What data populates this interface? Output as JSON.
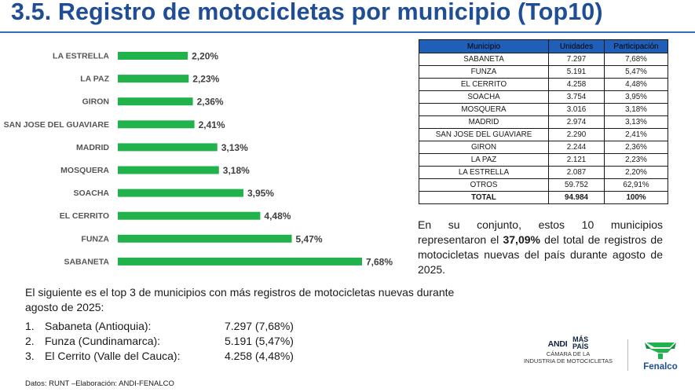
{
  "title": "3.5. Registro de motocicletas por municipio (Top10)",
  "colors": {
    "title": "#1f4e96",
    "bar": "#22b24c",
    "table_header": "#1f5fb8"
  },
  "chart_data": {
    "type": "bar",
    "orientation": "horizontal",
    "categories": [
      "LA ESTRELLA",
      "LA PAZ",
      "GIRON",
      "SAN JOSE DEL GUAVIARE",
      "MADRID",
      "MOSQUERA",
      "SOACHA",
      "EL CERRITO",
      "FUNZA",
      "SABANETA"
    ],
    "values": [
      2.2,
      2.23,
      2.36,
      2.41,
      3.13,
      3.18,
      3.95,
      4.48,
      5.47,
      7.68
    ],
    "value_labels": [
      "2,20%",
      "2,23%",
      "2,36%",
      "2,41%",
      "3,13%",
      "3,18%",
      "3,95%",
      "4,48%",
      "5,47%",
      "7,68%"
    ],
    "unit": "%",
    "xlim": [
      0,
      7.68
    ],
    "grid": false,
    "legend": "none"
  },
  "table": {
    "headers": [
      "Municipio",
      "Unidades",
      "Participación"
    ],
    "rows": [
      [
        "SABANETA",
        "7.297",
        "7,68%"
      ],
      [
        "FUNZA",
        "5.191",
        "5,47%"
      ],
      [
        "EL CERRITO",
        "4.258",
        "4,48%"
      ],
      [
        "SOACHA",
        "3.754",
        "3,95%"
      ],
      [
        "MOSQUERA",
        "3.016",
        "3,18%"
      ],
      [
        "MADRID",
        "2.974",
        "3,13%"
      ],
      [
        "SAN JOSE DEL GUAVIARE",
        "2.290",
        "2,41%"
      ],
      [
        "GIRON",
        "2.244",
        "2,36%"
      ],
      [
        "LA PAZ",
        "2.121",
        "2,23%"
      ],
      [
        "LA ESTRELLA",
        "2.087",
        "2,20%"
      ],
      [
        "OTROS",
        "59.752",
        "62,91%"
      ]
    ],
    "total": [
      "TOTAL",
      "94.984",
      "100%"
    ]
  },
  "summary": {
    "before": "En su conjunto, estos 10 municipios representaron el ",
    "highlight": "37,09%",
    "after": " del total de registros de motocicletas nuevas del país durante agosto de 2025."
  },
  "intro": "El siguiente es el top 3 de municipios con más registros de motocicletas nuevas durante agosto de 2025:",
  "top3": [
    {
      "num": "1.",
      "name": "Sabaneta (Antioquia):",
      "value": "7.297 (7,68%)"
    },
    {
      "num": "2.",
      "name": "Funza (Cundinamarca):",
      "value": "5.191 (5,47%)"
    },
    {
      "num": "3.",
      "name": "El Cerrito (Valle del Cauca):",
      "value": "4.258 (4,48%)"
    }
  ],
  "source": "Datos: RUNT –Elaboración: ANDI-FENALCO",
  "logos": {
    "andi": "ANDI",
    "mas": "MÁS",
    "pais": "PAÍS",
    "andi_line1": "CÁMARA DE LA",
    "andi_line2": "INDUSTRIA DE MOTOCICLETAS",
    "fenalco": "Fenalco"
  }
}
